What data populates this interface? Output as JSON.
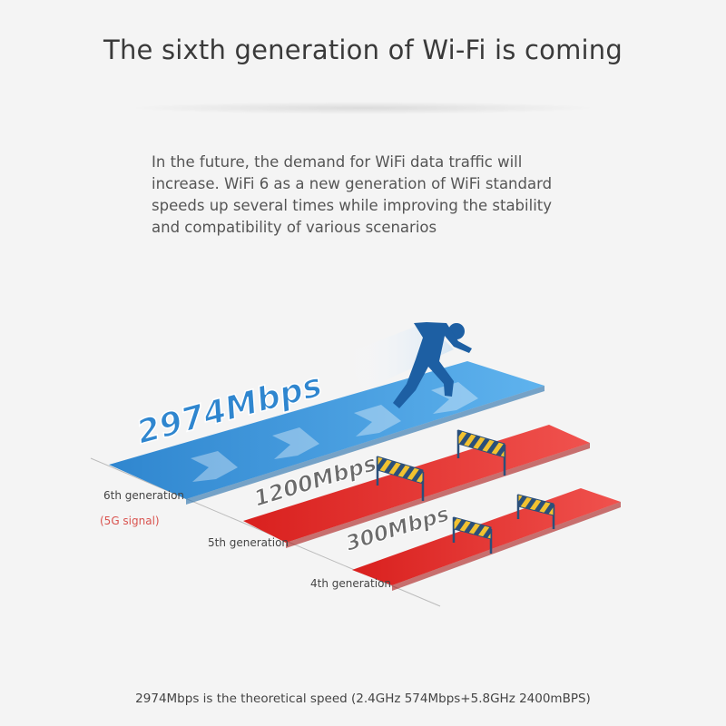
{
  "title": "The sixth generation of Wi-Fi is coming",
  "intro": "In the future, the demand for WiFi data traffic will increase. WiFi 6 as a new generation of WiFi standard speeds up several times while improving the stability and compatibility of various scenarios",
  "tracks": [
    {
      "speed": "2974Mbps",
      "generation": "6th generation",
      "note": "(5G signal)",
      "color": "#3f97d8"
    },
    {
      "speed": "1200Mbps",
      "generation": "5th generation",
      "color": "#e8302e"
    },
    {
      "speed": "300Mbps",
      "generation": "4th generation",
      "color": "#e8302e"
    }
  ],
  "icons": [
    "runner-icon",
    "hurdle-icon"
  ],
  "footnote": "2974Mbps is the theoretical speed (2.4GHz 574Mbps+5.8GHz 2400mBPS)"
}
